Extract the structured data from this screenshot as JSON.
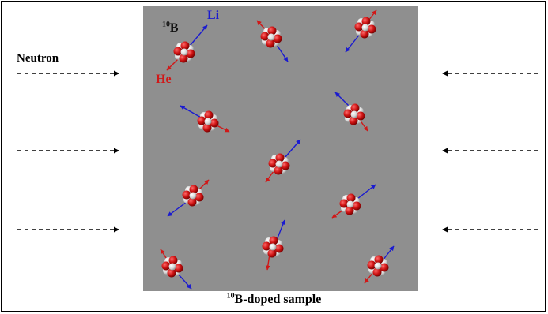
{
  "labels": {
    "neutron": "Neutron",
    "sample_sup": "10",
    "sample_text": "B-doped sample",
    "isotope_sup": "10",
    "isotope_text": "B",
    "li": "Li",
    "he": "He"
  },
  "colors": {
    "sample_fill": "#8f8f8f",
    "lithium": "#1a1ad0",
    "helium": "#d01818",
    "nucleon_red": "#cc1111",
    "nucleon_white": "#e8e8e8"
  }
}
